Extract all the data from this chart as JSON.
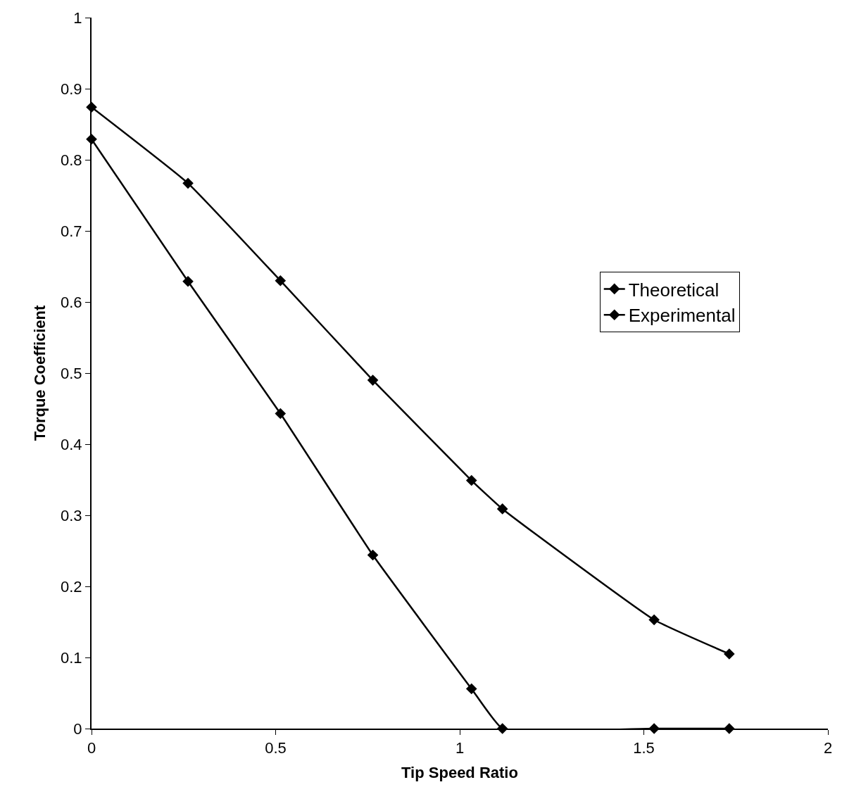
{
  "chart_data": {
    "type": "line",
    "xlabel": "Tip Speed Ratio",
    "ylabel": "Torque Coefficient",
    "xlim": [
      0,
      2
    ],
    "xticks": [
      0,
      0.5,
      1,
      1.5,
      2
    ],
    "ylim": [
      0,
      1
    ],
    "yticks": [
      0,
      0.1,
      0.2,
      0.3,
      0.4,
      0.5,
      0.6,
      0.7,
      0.8,
      0.9,
      1
    ],
    "legend": "right",
    "marker": "diamond",
    "line_style": "solid",
    "series": [
      {
        "name": "Theoretical",
        "color": "#000000",
        "x": [
          0,
          0.262,
          0.513,
          0.764,
          1.032,
          1.116,
          1.528,
          1.732
        ],
        "values": [
          0.874,
          0.767,
          0.63,
          0.49,
          0.349,
          0.309,
          0.153,
          0.105
        ]
      },
      {
        "name": "Experimental",
        "color": "#000000",
        "x": [
          0,
          0.262,
          0.513,
          0.764,
          1.032,
          1.116,
          1.528,
          1.732
        ],
        "values": [
          0.829,
          0.629,
          0.443,
          0.244,
          0.056,
          0,
          0,
          0
        ]
      }
    ]
  }
}
